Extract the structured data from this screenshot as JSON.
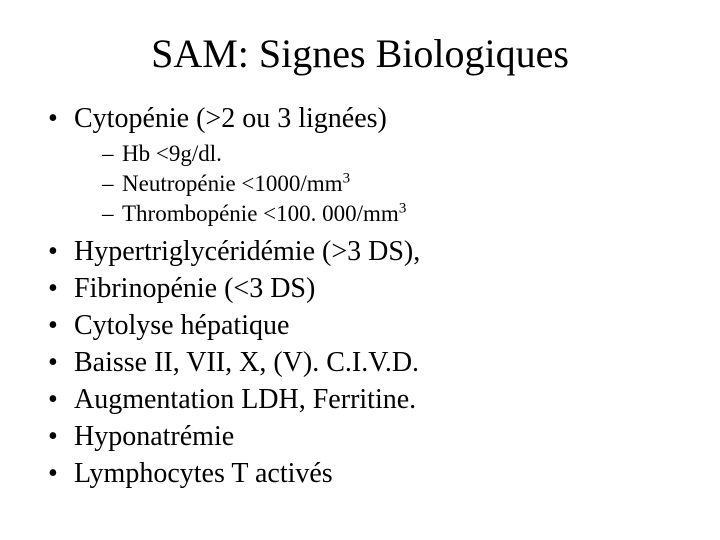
{
  "slide": {
    "background": "#ffffff",
    "text_color": "#000000",
    "font_family": "Comic Sans MS",
    "title": "SAM: Signes Biologiques",
    "title_fontsize": 40,
    "bullets": [
      {
        "text": "Cytopénie (>2 ou 3 lignées)",
        "sub": [
          {
            "text": "Hb <9g/dl."
          },
          {
            "text": "Neutropénie <1000/mm",
            "sup": "3"
          },
          {
            "text": "Thrombopénie <100. 000/mm",
            "sup": "3"
          }
        ]
      },
      {
        "text": "Hypertriglycéridémie (>3 DS), "
      },
      {
        "text": "Fibrinopénie (<3 DS)"
      },
      {
        "text": "Cytolyse hépatique"
      },
      {
        "text": "Baisse II, VII, X, (V). C.I.V.D."
      },
      {
        "text": "Augmentation LDH, Ferritine."
      },
      {
        "text": "Hyponatrémie"
      },
      {
        "text": "Lymphocytes T activés"
      }
    ],
    "bullet_fontsize": 28,
    "subbullet_fontsize": 23
  }
}
